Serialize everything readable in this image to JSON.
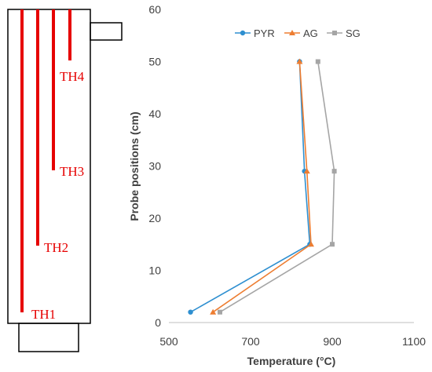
{
  "reactor": {
    "probes": [
      {
        "label": "TH1"
      },
      {
        "label": "TH2"
      },
      {
        "label": "TH3"
      },
      {
        "label": "TH4"
      }
    ]
  },
  "chart_data": {
    "type": "line",
    "title": "",
    "xlabel": "Temperature (°C)",
    "ylabel": "Probe positions (cm)",
    "xlim": [
      500,
      1100
    ],
    "ylim": [
      0,
      60
    ],
    "xticks": [
      500,
      700,
      900,
      1100
    ],
    "yticks": [
      0,
      10,
      20,
      30,
      40,
      50,
      60
    ],
    "grid": false,
    "legend": "top-center",
    "series": [
      {
        "name": "PYR",
        "color": "#2e8fd0",
        "marker": "circle",
        "points": [
          {
            "x": 553,
            "y": 2
          },
          {
            "x": 845,
            "y": 15
          },
          {
            "x": 832,
            "y": 29
          },
          {
            "x": 820,
            "y": 50
          }
        ]
      },
      {
        "name": "AG",
        "color": "#ed7d31",
        "marker": "triangle",
        "points": [
          {
            "x": 608,
            "y": 2
          },
          {
            "x": 848,
            "y": 15
          },
          {
            "x": 838,
            "y": 29
          },
          {
            "x": 820,
            "y": 50
          }
        ]
      },
      {
        "name": "SG",
        "color": "#a5a5a5",
        "marker": "square",
        "points": [
          {
            "x": 625,
            "y": 2
          },
          {
            "x": 900,
            "y": 15
          },
          {
            "x": 905,
            "y": 29
          },
          {
            "x": 865,
            "y": 50
          }
        ]
      }
    ]
  }
}
